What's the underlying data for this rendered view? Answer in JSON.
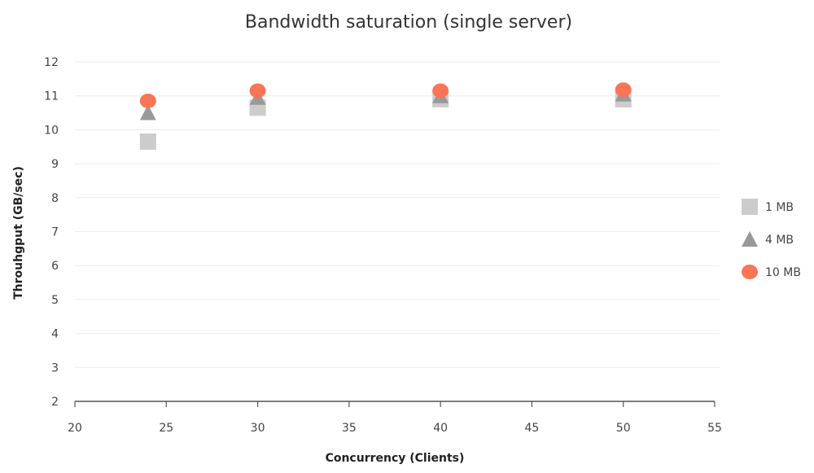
{
  "chart_data": {
    "type": "scatter",
    "title": "Bandwidth saturation (single server)",
    "xlabel": "Concurrency (Clients)",
    "ylabel": "Throuhgput (GB/sec)",
    "xlim": [
      20,
      55
    ],
    "ylim": [
      2,
      12
    ],
    "xticks": [
      20,
      25,
      30,
      35,
      40,
      45,
      50,
      55
    ],
    "yticks": [
      2,
      3,
      4,
      5,
      6,
      7,
      8,
      9,
      10,
      11,
      12
    ],
    "grid": "horizontal",
    "legend_position": "right",
    "series": [
      {
        "name": "1 MB",
        "marker": "square",
        "color": "#cccccc",
        "points": [
          {
            "x": 24,
            "y": 9.65
          },
          {
            "x": 30,
            "y": 10.65
          },
          {
            "x": 40,
            "y": 10.9
          },
          {
            "x": 50,
            "y": 10.9
          }
        ]
      },
      {
        "name": "4 MB",
        "marker": "triangle",
        "color": "#999999",
        "points": [
          {
            "x": 24,
            "y": 10.5
          },
          {
            "x": 30,
            "y": 10.95
          },
          {
            "x": 40,
            "y": 11.0
          },
          {
            "x": 50,
            "y": 11.05
          }
        ]
      },
      {
        "name": "10 MB",
        "marker": "circle",
        "color": "#f97555",
        "points": [
          {
            "x": 24,
            "y": 10.85
          },
          {
            "x": 30,
            "y": 11.15
          },
          {
            "x": 40,
            "y": 11.15
          },
          {
            "x": 50,
            "y": 11.18
          }
        ]
      }
    ]
  }
}
